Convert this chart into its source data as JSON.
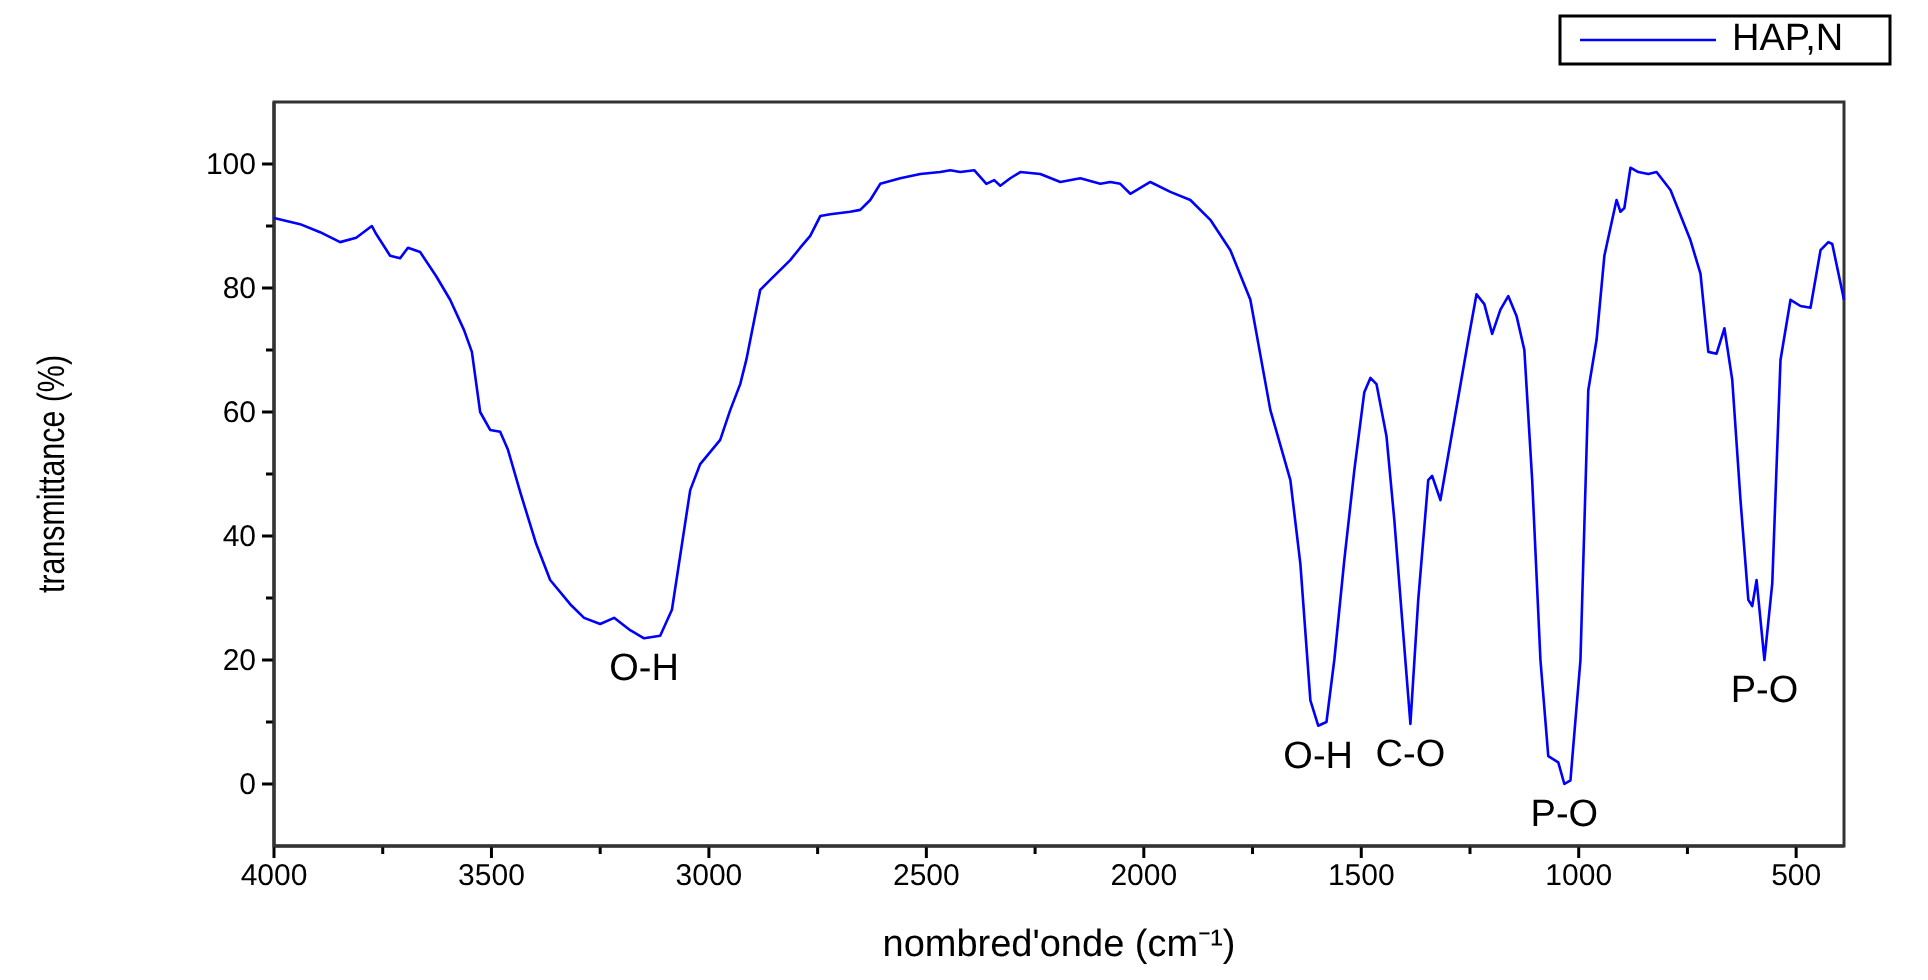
{
  "chart_data": {
    "type": "line",
    "xlabel": "nombred'onde (cm⁻¹)",
    "ylabel": "transmittance (%)",
    "xlim": [
      4000,
      390
    ],
    "ylim": [
      -10,
      110
    ],
    "xticks": [
      4000,
      {
        "value": 3750,
        "label": null
      },
      3500,
      {
        "value": 3250,
        "label": null
      },
      3000,
      {
        "value": 2750,
        "label": null
      },
      2500,
      {
        "value": 2250,
        "label": null
      },
      2000,
      {
        "value": 1750,
        "label": null
      },
      1500,
      {
        "value": 1250,
        "label": null
      },
      1000,
      {
        "value": 750,
        "label": null
      },
      500
    ],
    "yticks": [
      0,
      {
        "value": 10,
        "label": null
      },
      20,
      {
        "value": 30,
        "label": null
      },
      40,
      {
        "value": 50,
        "label": null
      },
      60,
      {
        "value": 70,
        "label": null
      },
      80,
      {
        "value": 90,
        "label": null
      },
      100
    ],
    "grid": false,
    "legend": "top right",
    "line_style": "solid",
    "marker": "none",
    "series": [
      {
        "name": "HAP,N",
        "color": "#0000ff",
        "x": [
          4000,
          3940,
          3894,
          3848,
          3811,
          3775,
          3765,
          3733,
          3710,
          3692,
          3664,
          3627,
          3595,
          3563,
          3545,
          3526,
          3503,
          3480,
          3462,
          3434,
          3397,
          3365,
          3319,
          3287,
          3250,
          3218,
          3181,
          3149,
          3112,
          3085,
          3043,
          3020,
          2974,
          2951,
          2928,
          2914,
          2882,
          2859,
          2813,
          2790,
          2767,
          2744,
          2721,
          2675,
          2652,
          2629,
          2606,
          2560,
          2514,
          2468,
          2445,
          2422,
          2390,
          2362,
          2344,
          2330,
          2307,
          2284,
          2238,
          2192,
          2146,
          2100,
          2077,
          2054,
          2031,
          1985,
          1939,
          1893,
          1847,
          1801,
          1755,
          1709,
          1663,
          1640,
          1617,
          1599,
          1580,
          1562,
          1539,
          1516,
          1493,
          1479,
          1465,
          1442,
          1424,
          1406,
          1387,
          1369,
          1346,
          1337,
          1318,
          1286,
          1254,
          1235,
          1217,
          1199,
          1180,
          1162,
          1143,
          1125,
          1107,
          1088,
          1070,
          1047,
          1033,
          1019,
          996,
          978,
          959,
          941,
          923,
          913,
          904,
          895,
          881,
          863,
          840,
          821,
          789,
          743,
          720,
          702,
          683,
          665,
          647,
          628,
          610,
          601,
          591,
          573,
          555,
          536,
          513,
          490,
          467,
          444,
          426,
          417,
          390
        ],
        "values": [
          91.3,
          90.3,
          89.0,
          87.4,
          88.1,
          90.0,
          88.7,
          85.2,
          84.8,
          86.5,
          85.8,
          81.9,
          78.1,
          73.2,
          69.7,
          60.0,
          57.1,
          56.8,
          53.9,
          47.1,
          38.7,
          32.9,
          29.0,
          26.8,
          25.8,
          26.8,
          24.8,
          23.5,
          23.9,
          28.1,
          47.4,
          51.6,
          55.5,
          60.3,
          64.5,
          68.4,
          79.7,
          81.3,
          84.5,
          86.5,
          88.4,
          91.6,
          91.9,
          92.3,
          92.6,
          94.2,
          96.8,
          97.7,
          98.4,
          98.7,
          99.0,
          98.7,
          99.0,
          96.8,
          97.4,
          96.5,
          97.7,
          98.7,
          98.4,
          97.1,
          97.7,
          96.8,
          97.1,
          96.8,
          95.2,
          97.1,
          95.5,
          94.2,
          91.0,
          86.1,
          78.1,
          60.3,
          49.0,
          35.5,
          13.5,
          9.4,
          10.0,
          20.0,
          36.1,
          50.6,
          63.2,
          65.5,
          64.5,
          56.1,
          42.6,
          26.5,
          9.7,
          29.7,
          49.0,
          49.7,
          45.8,
          58.7,
          71.6,
          79.0,
          77.4,
          72.6,
          76.5,
          78.7,
          75.5,
          70.0,
          49.0,
          20.0,
          4.5,
          3.5,
          0.0,
          0.6,
          20.0,
          63.5,
          71.6,
          85.2,
          91.0,
          94.2,
          92.3,
          92.9,
          99.4,
          98.7,
          98.4,
          98.7,
          95.8,
          87.7,
          82.3,
          69.7,
          69.4,
          73.5,
          65.2,
          45.8,
          29.7,
          28.7,
          32.9,
          20.0,
          32.3,
          68.4,
          78.1,
          77.1,
          76.8,
          86.1,
          87.4,
          87.1,
          78.1
        ]
      }
    ],
    "annotations": [
      {
        "text": "O-H",
        "x": 3149,
        "y": 23.5
      },
      {
        "text": "O-H",
        "x": 1599,
        "y": 9.4
      },
      {
        "text": "C-O",
        "x": 1387,
        "y": 9.7
      },
      {
        "text": "P-O",
        "x": 1033,
        "y": 0.0
      },
      {
        "text": "P-O",
        "x": 573,
        "y": 20.0
      }
    ]
  }
}
